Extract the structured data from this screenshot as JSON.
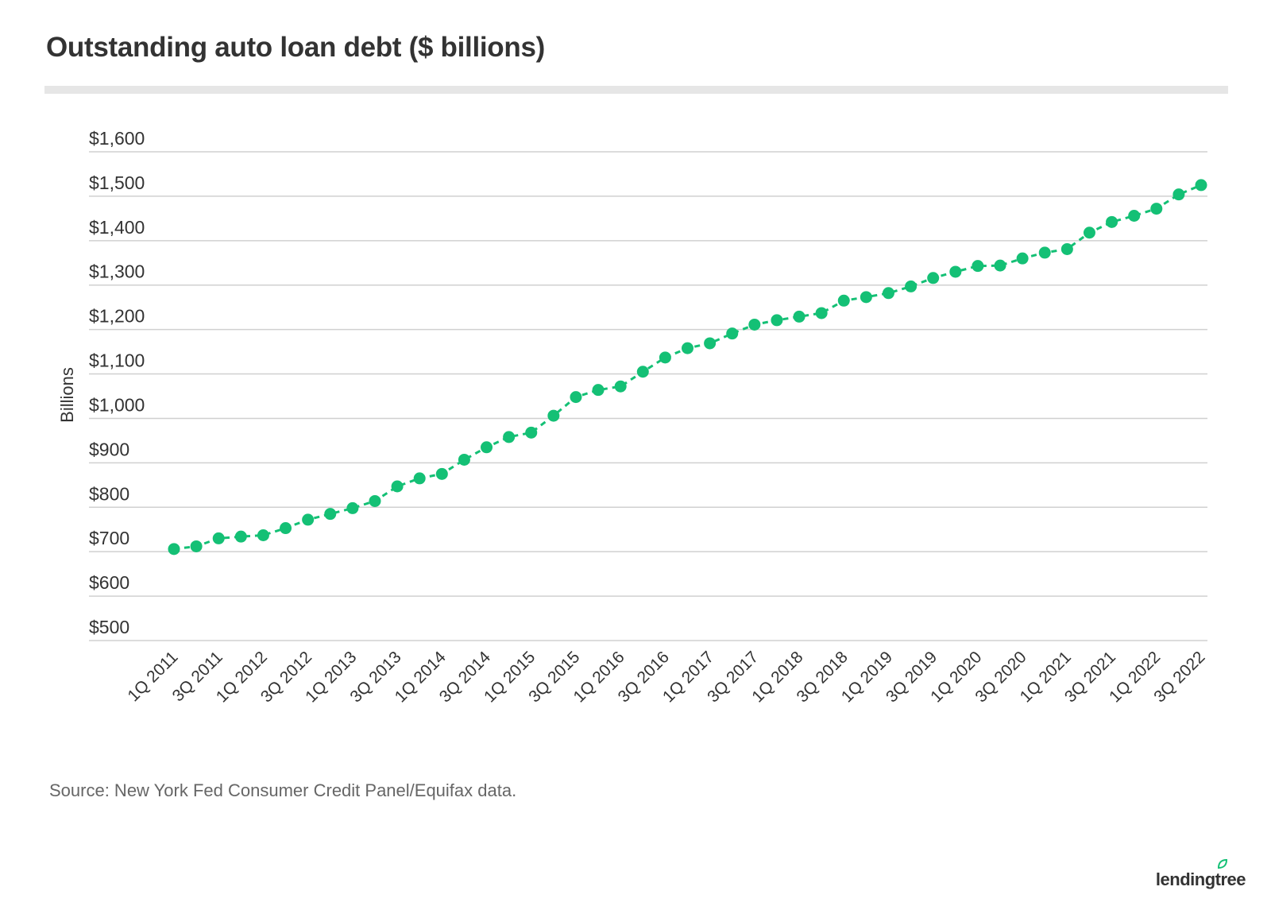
{
  "title": "Outstanding auto loan debt ($ billions)",
  "source": "Source: New York Fed Consumer Credit Panel/Equifax data.",
  "brand": "lendingtree",
  "chart_data": {
    "type": "line",
    "ylabel": "Billions",
    "ylim": [
      500,
      1600
    ],
    "yticks": [
      500,
      600,
      700,
      800,
      900,
      1000,
      1100,
      1200,
      1300,
      1400,
      1500,
      1600
    ],
    "ytick_labels": [
      "$500",
      "$600",
      "$700",
      "$800",
      "$900",
      "$1,000",
      "$1,100",
      "$1,200",
      "$1,300",
      "$1,400",
      "$1,500",
      "$1,600"
    ],
    "x_tick_labels": [
      "1Q 2011",
      "3Q 2011",
      "1Q 2012",
      "3Q 2012",
      "1Q 2013",
      "3Q 2013",
      "1Q 2014",
      "3Q 2014",
      "1Q 2015",
      "3Q 2015",
      "1Q 2016",
      "3Q 2016",
      "1Q 2017",
      "3Q 2017",
      "1Q 2018",
      "3Q 2018",
      "1Q 2019",
      "3Q 2019",
      "1Q 2020",
      "3Q 2020",
      "1Q 2021",
      "3Q 2021",
      "1Q 2022",
      "3Q 2022"
    ],
    "grid": true,
    "line_style": "dashed",
    "color": "#14c075",
    "categories": [
      "1Q 2011",
      "2Q 2011",
      "3Q 2011",
      "4Q 2011",
      "1Q 2012",
      "2Q 2012",
      "3Q 2012",
      "4Q 2012",
      "1Q 2013",
      "2Q 2013",
      "3Q 2013",
      "4Q 2013",
      "1Q 2014",
      "2Q 2014",
      "3Q 2014",
      "4Q 2014",
      "1Q 2015",
      "2Q 2015",
      "3Q 2015",
      "4Q 2015",
      "1Q 2016",
      "2Q 2016",
      "3Q 2016",
      "4Q 2016",
      "1Q 2017",
      "2Q 2017",
      "3Q 2017",
      "4Q 2017",
      "1Q 2018",
      "2Q 2018",
      "3Q 2018",
      "4Q 2018",
      "1Q 2019",
      "2Q 2019",
      "3Q 2019",
      "4Q 2019",
      "1Q 2020",
      "2Q 2020",
      "3Q 2020",
      "4Q 2020",
      "1Q 2021",
      "2Q 2021",
      "3Q 2021",
      "4Q 2021",
      "1Q 2022",
      "2Q 2022",
      "3Q 2022"
    ],
    "values": [
      706,
      712,
      730,
      734,
      737,
      753,
      772,
      785,
      798,
      814,
      847,
      865,
      875,
      907,
      935,
      958,
      968,
      1006,
      1048,
      1064,
      1072,
      1105,
      1137,
      1158,
      1169,
      1191,
      1211,
      1221,
      1229,
      1237,
      1265,
      1273,
      1282,
      1297,
      1316,
      1330,
      1343,
      1344,
      1360,
      1373,
      1381,
      1418,
      1442,
      1456,
      1472,
      1504,
      1525
    ]
  }
}
